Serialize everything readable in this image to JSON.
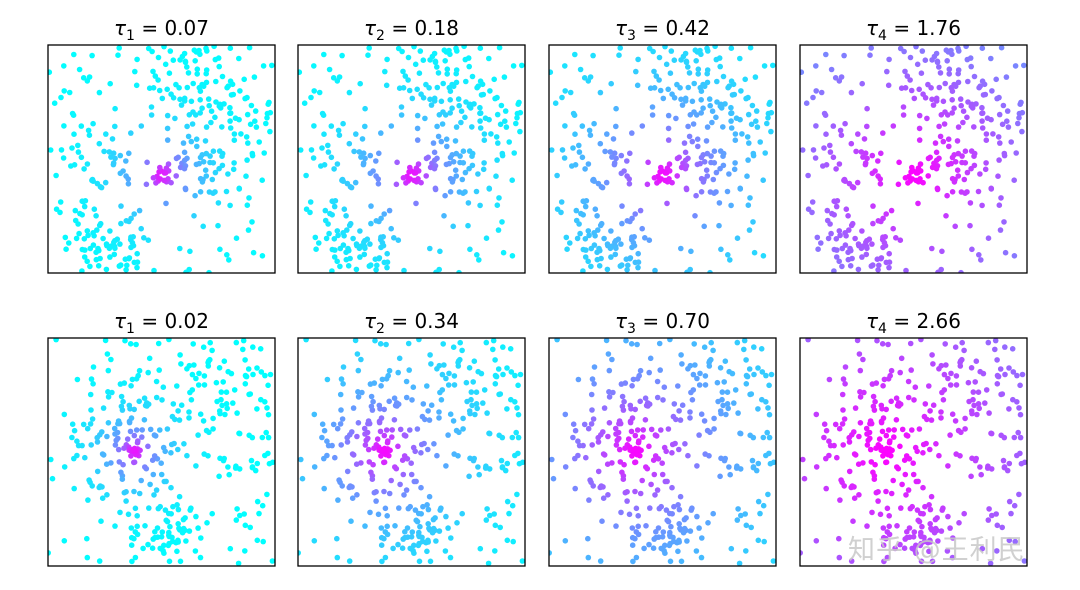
{
  "figure": {
    "watermark": "知乎 @王利民",
    "colormap": {
      "low": "#00ffff",
      "high": "#ff00ff"
    }
  },
  "chart_data": [
    {
      "type": "scatter",
      "row": 1,
      "col": 1,
      "title": "τ₁ = 0.07",
      "title_symbol": "τ",
      "title_sub": "1",
      "title_value": "0.07",
      "tau": 0.07,
      "source_cell": 1,
      "n_points": 360
    },
    {
      "type": "scatter",
      "row": 1,
      "col": 2,
      "title": "τ₂ = 0.18",
      "title_symbol": "τ",
      "title_sub": "2",
      "title_value": "0.18",
      "tau": 0.18,
      "source_cell": 1,
      "n_points": 360
    },
    {
      "type": "scatter",
      "row": 1,
      "col": 3,
      "title": "τ₃ = 0.42",
      "title_symbol": "τ",
      "title_sub": "3",
      "title_value": "0.42",
      "tau": 0.42,
      "source_cell": 1,
      "n_points": 360
    },
    {
      "type": "scatter",
      "row": 1,
      "col": 4,
      "title": "τ₄ = 1.76",
      "title_symbol": "τ",
      "title_sub": "4",
      "title_value": "1.76",
      "tau": 1.76,
      "source_cell": 1,
      "n_points": 360
    },
    {
      "type": "scatter",
      "row": 2,
      "col": 1,
      "title": "τ₁ = 0.02",
      "title_symbol": "τ",
      "title_sub": "1",
      "title_value": "0.02",
      "tau": 0.02,
      "source_cell": 2,
      "n_points": 360
    },
    {
      "type": "scatter",
      "row": 2,
      "col": 2,
      "title": "τ₂ = 0.34",
      "title_symbol": "τ",
      "title_sub": "2",
      "title_value": "0.34",
      "tau": 0.34,
      "source_cell": 2,
      "n_points": 360
    },
    {
      "type": "scatter",
      "row": 2,
      "col": 3,
      "title": "τ₃ = 0.70",
      "title_symbol": "τ",
      "title_sub": "3",
      "title_value": "0.70",
      "tau": 0.7,
      "source_cell": 2,
      "n_points": 360
    },
    {
      "type": "scatter",
      "row": 2,
      "col": 4,
      "title": "τ₄ = 2.66",
      "title_symbol": "τ",
      "title_sub": "4",
      "title_value": "2.66",
      "tau": 2.66,
      "source_cell": 2,
      "n_points": 360
    }
  ]
}
